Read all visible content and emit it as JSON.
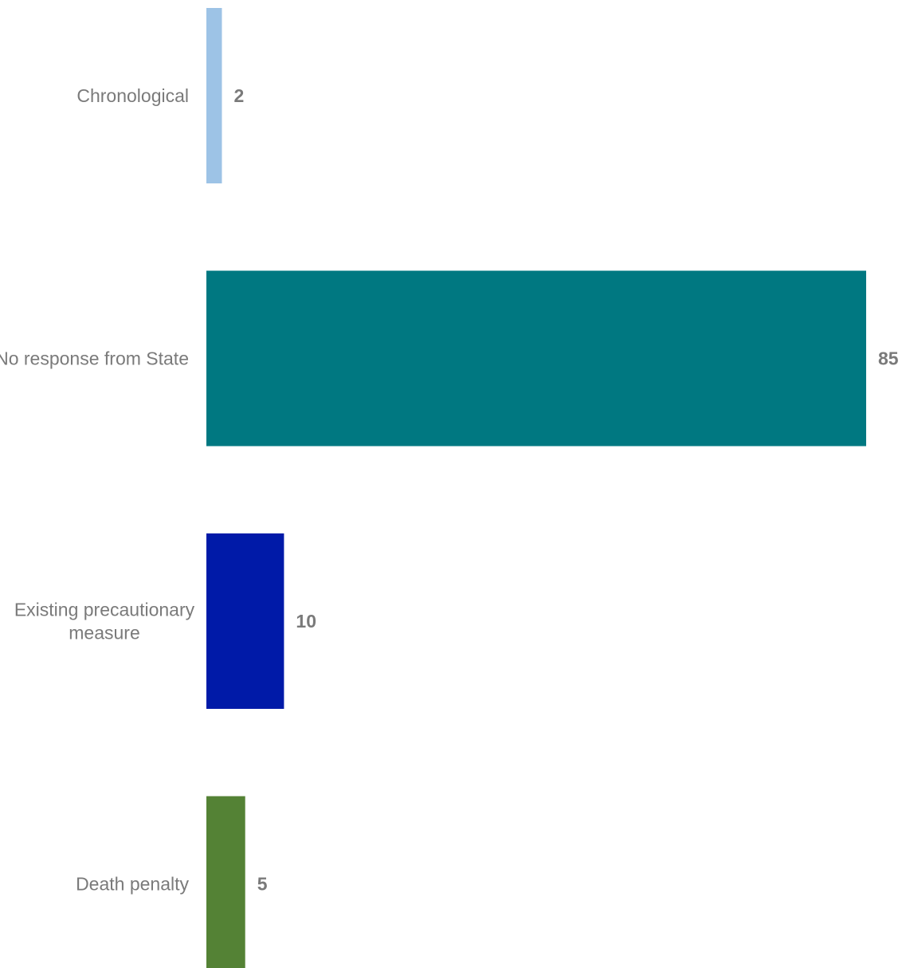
{
  "chart_data": {
    "type": "bar",
    "orientation": "horizontal",
    "categories": [
      [
        "Chronological"
      ],
      [
        "No response from State"
      ],
      [
        "Existing precautionary",
        "measure"
      ],
      [
        "Death penalty"
      ]
    ],
    "values": [
      2,
      85,
      10,
      5
    ],
    "value_labels": [
      "2",
      "85",
      "10",
      "5"
    ],
    "colors": [
      "#9DC3E6",
      "#007881",
      "#001AA8",
      "#548235"
    ],
    "title": "",
    "xlabel": "",
    "ylabel": "",
    "xlim": [
      0,
      85
    ],
    "grid": false,
    "legend": "none"
  }
}
